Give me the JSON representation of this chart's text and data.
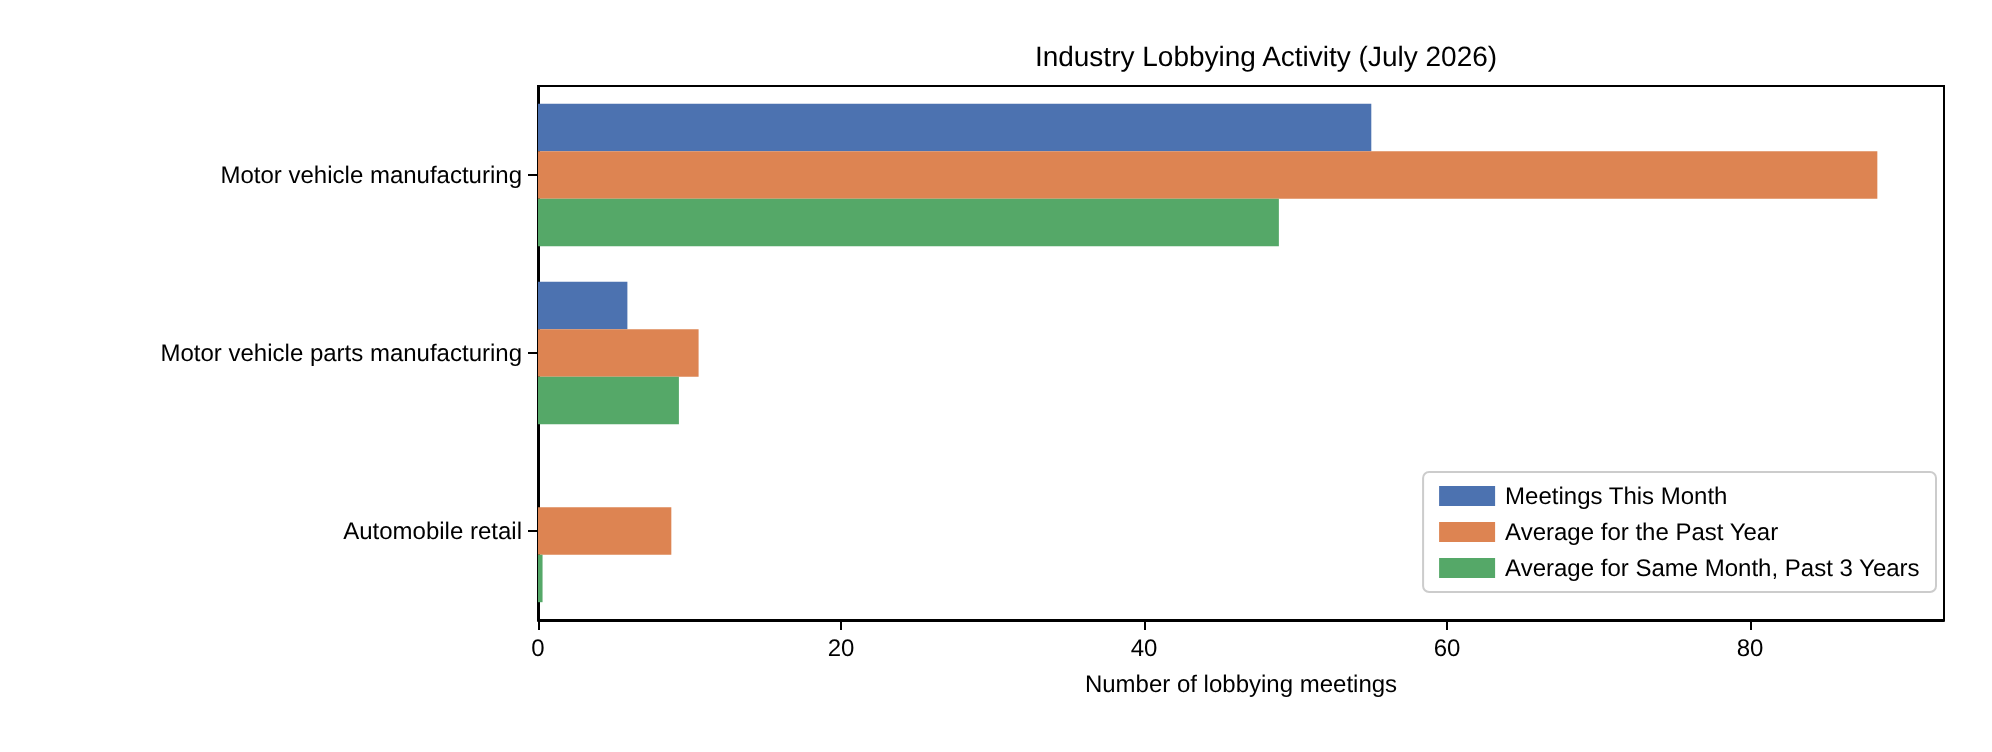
{
  "chart_data": {
    "type": "bar",
    "orientation": "horizontal",
    "title": "Industry Lobbying Activity (July 2026)",
    "xlabel": "Number of lobbying meetings",
    "categories": [
      "Motor vehicle manufacturing",
      "Motor vehicle parts manufacturing",
      "Automobile retail"
    ],
    "series": [
      {
        "name": "Meetings This Month",
        "color": "#4c72b0",
        "values": [
          55,
          5.9,
          0
        ]
      },
      {
        "name": "Average for the Past Year",
        "color": "#dd8452",
        "values": [
          88.4,
          10.6,
          8.8
        ]
      },
      {
        "name": "Average for Same Month, Past 3 Years",
        "color": "#55a868",
        "values": [
          48.9,
          9.3,
          0.3
        ]
      }
    ],
    "xlim": [
      0,
      92.8
    ],
    "xticks": [
      0,
      20,
      40,
      60,
      80
    ],
    "grid": false,
    "legend": "bottom right"
  }
}
